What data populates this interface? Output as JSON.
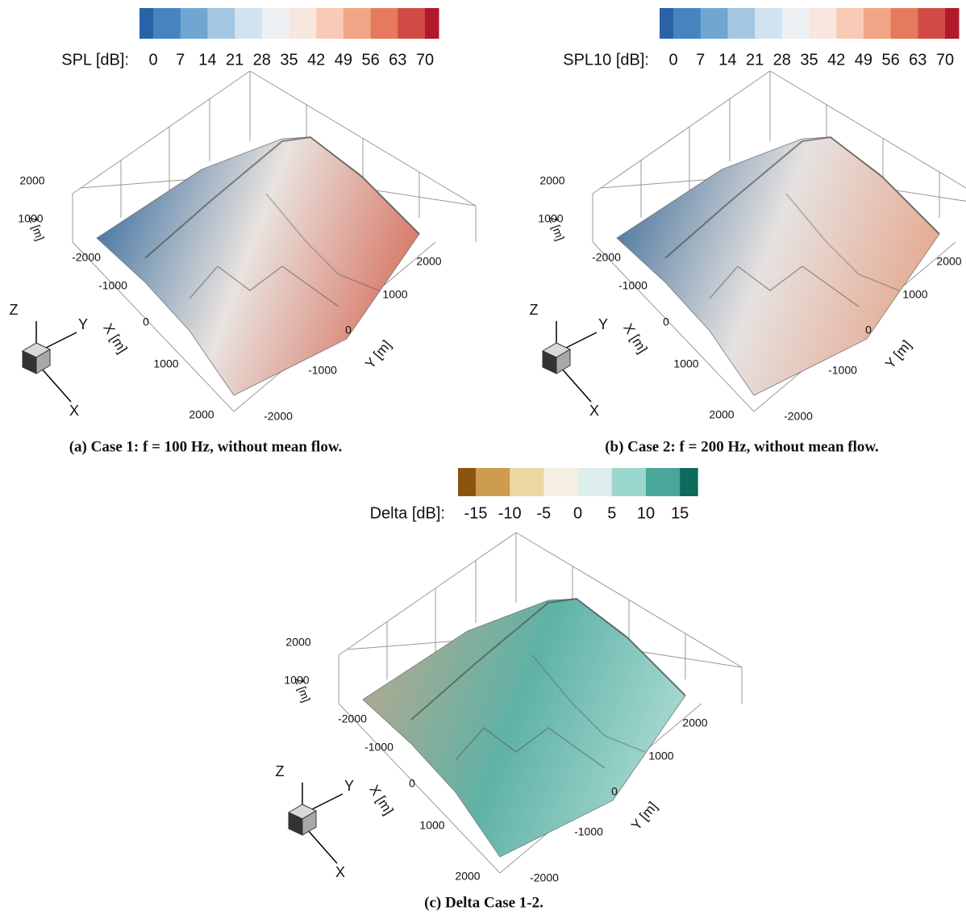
{
  "panels": [
    {
      "colorbar": {
        "label": "SPL [dB]:",
        "ticks": [
          0,
          7,
          14,
          21,
          28,
          35,
          42,
          49,
          56,
          63,
          70
        ],
        "colors": [
          "#2a62a8",
          "#4584bf",
          "#70a6d2",
          "#a3c6e3",
          "#d1e3f0",
          "#edf1f4",
          "#f8e6df",
          "#f9cbb6",
          "#f2a586",
          "#e57a5d",
          "#d14b45",
          "#b2192b"
        ]
      },
      "axes": {
        "z_label": "Z [m]",
        "z_ticks": [
          2000,
          1000
        ],
        "x_label": "X [m]",
        "x_ticks": [
          -2000,
          -1000,
          0,
          1000,
          2000
        ],
        "y_label": "Y [m]",
        "y_ticks": [
          2000,
          1000,
          0,
          -1000,
          -2000
        ]
      },
      "triad": [
        "Z",
        "Y",
        "X"
      ],
      "surface_colors": [
        "#3b6e9e",
        "#e9e3df",
        "#d77563"
      ],
      "caption": "(a) Case 1: f = 100 Hz, without mean flow."
    },
    {
      "colorbar": {
        "label": "SPL10 [dB]:",
        "ticks": [
          0,
          7,
          14,
          21,
          28,
          35,
          42,
          49,
          56,
          63,
          70
        ],
        "colors": [
          "#2a62a8",
          "#4584bf",
          "#70a6d2",
          "#a3c6e3",
          "#d1e3f0",
          "#edf1f4",
          "#f8e6df",
          "#f9cbb6",
          "#f2a586",
          "#e57a5d",
          "#d14b45",
          "#b2192b"
        ]
      },
      "axes": {
        "z_label": "Z [m]",
        "z_ticks": [
          2000,
          1000
        ],
        "x_label": "X [m]",
        "x_ticks": [
          -2000,
          -1000,
          0,
          1000,
          2000
        ],
        "y_label": "Y [m]",
        "y_ticks": [
          2000,
          1000,
          0,
          -1000,
          -2000
        ]
      },
      "triad": [
        "Z",
        "Y",
        "X"
      ],
      "surface_colors": [
        "#46739c",
        "#e6e2e0",
        "#e5a88f"
      ],
      "caption": "(b) Case 2: f = 200 Hz, without mean flow."
    },
    {
      "colorbar": {
        "label": "Delta [dB]:",
        "ticks": [
          -15,
          -10,
          -5,
          0,
          5,
          10,
          15
        ],
        "colors": [
          "#8c5410",
          "#cd9c4e",
          "#ecd7a2",
          "#f5efe2",
          "#deeeec",
          "#9bd6cc",
          "#4aa699",
          "#0e6a5c"
        ]
      },
      "axes": {
        "z_label": "Z [m]",
        "z_ticks": [
          2000,
          1000
        ],
        "x_label": "X [m]",
        "x_ticks": [
          -2000,
          -1000,
          0,
          1000,
          2000
        ],
        "y_label": "Y [m]",
        "y_ticks": [
          2000,
          1000,
          0,
          -1000,
          -2000
        ]
      },
      "triad": [
        "Z",
        "Y",
        "X"
      ],
      "surface_colors": [
        "#b5a98f",
        "#5fb2a6",
        "#a8dad2"
      ],
      "caption": "(c) Delta Case 1-2."
    }
  ]
}
